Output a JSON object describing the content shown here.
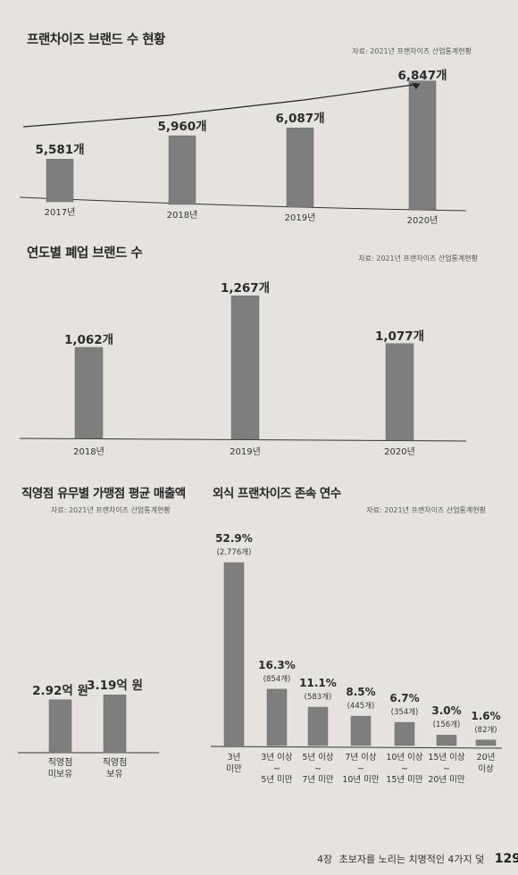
{
  "chart_data": [
    {
      "type": "bar",
      "title": "프랜차이즈 브랜드 수 현황",
      "source": "자료: 2021년 프랜차이즈 산업통계현황",
      "categories": [
        "2017년",
        "2018년",
        "2019년",
        "2020년"
      ],
      "values": [
        5581,
        5960,
        6087,
        6847
      ],
      "value_labels": [
        "5,581개",
        "5,960개",
        "6,087개",
        "6,847개"
      ],
      "trend_arrow": true,
      "ylim": [
        4950,
        7000
      ]
    },
    {
      "type": "bar",
      "title": "연도별 폐업 브랜드 수",
      "source": "자료: 2021년 프랜차이즈 산업통계현황",
      "categories": [
        "2018년",
        "2019년",
        "2020년"
      ],
      "values": [
        1062,
        1267,
        1077
      ],
      "value_labels": [
        "1,062개",
        "1,267개",
        "1,077개"
      ],
      "ylim": [
        700,
        1300
      ]
    },
    {
      "type": "bar",
      "title": "직영점 유무별 가맹점 평균 매출액",
      "source": "자료: 2021년 프랜차이즈 산업통계현황",
      "categories": [
        "직영점\n미보유",
        "직영점\n보유"
      ],
      "values": [
        2.92,
        3.19
      ],
      "value_labels": [
        "2.92억 원",
        "3.19억 원"
      ],
      "ylim": [
        0,
        10
      ]
    },
    {
      "type": "bar",
      "title": "외식 프랜차이즈 존속 연수",
      "source": "자료: 2021년 프랜차이즈 산업통계현황",
      "categories": [
        "3년\n미만",
        "3년 이상\n~\n5년 미만",
        "5년 이상\n~\n7년 미만",
        "7년 이상\n~\n10년 미만",
        "10년 이상\n~\n15년 미만",
        "15년 이상\n~\n20년 미만",
        "20년\n이상"
      ],
      "values": [
        52.9,
        16.3,
        11.1,
        8.5,
        6.7,
        3.0,
        1.6
      ],
      "value_labels": [
        "52.9%",
        "16.3%",
        "11.1%",
        "8.5%",
        "6.7%",
        "3.0%",
        "1.6%"
      ],
      "counts": [
        "(2,776개)",
        "(854개)",
        "(583개)",
        "(445개)",
        "(354개)",
        "(156개)",
        "(82개)"
      ],
      "ylim": [
        0,
        55
      ]
    }
  ],
  "footer": {
    "chapter": "4장",
    "text": "초보자를 노리는 치명적인 4가지 덫",
    "page": "129"
  },
  "colors": {
    "bar": "#7e7e7e",
    "bar_edge": "#6a6a6a",
    "background": "#e6e3df",
    "axis": "#333333"
  }
}
